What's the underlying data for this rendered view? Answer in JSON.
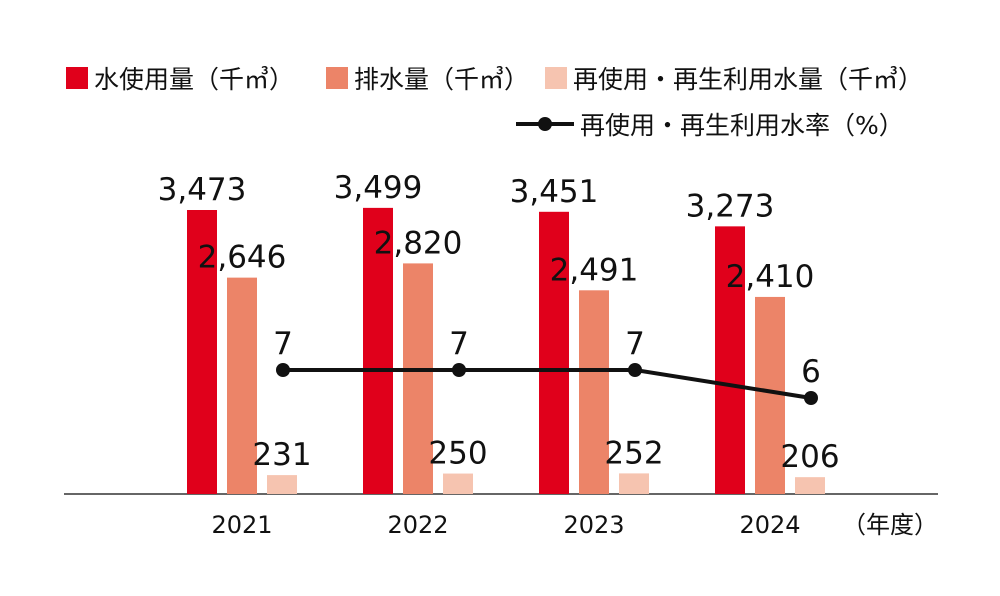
{
  "chart_data": {
    "type": "bar+line",
    "categories": [
      "2021",
      "2022",
      "2023",
      "2024"
    ],
    "x_unit_label": "（年度）",
    "series": [
      {
        "name": "水使用量（千㎥）",
        "type": "bar",
        "color": "#e0001b",
        "values": [
          3473,
          3499,
          3451,
          3273
        ],
        "labels": [
          "3,473",
          "3,499",
          "3,451",
          "3,273"
        ]
      },
      {
        "name": "排水量（千㎥）",
        "type": "bar",
        "color": "#ec8468",
        "values": [
          2646,
          2820,
          2491,
          2410
        ],
        "labels": [
          "2,646",
          "2,820",
          "2,491",
          "2,410"
        ]
      },
      {
        "name": "再使用・再生利用水量（千㎥）",
        "type": "bar",
        "color": "#f6c4b0",
        "values": [
          231,
          250,
          252,
          206
        ],
        "labels": [
          "231",
          "250",
          "252",
          "206"
        ]
      },
      {
        "name": "再使用・再生利用水率（%）",
        "type": "line",
        "color": "#111111",
        "values": [
          7,
          7,
          7,
          6
        ],
        "labels": [
          "7",
          "7",
          "7",
          "6"
        ]
      }
    ],
    "grid": false,
    "legend_position": "top"
  }
}
